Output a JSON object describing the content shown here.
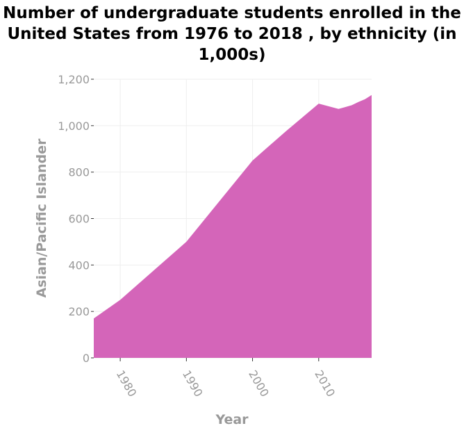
{
  "chart_data": {
    "type": "area",
    "title": "Number of undergraduate students enrolled in the United States from 1976 to 2018 , by ethnicity (in 1,000s)",
    "xlabel": "Year",
    "ylabel": "Asian/Pacific Islander",
    "x": [
      1976,
      1980,
      1990,
      2000,
      2005,
      2010,
      2013,
      2014,
      2015,
      2016,
      2017,
      2018
    ],
    "values": [
      170,
      250,
      500,
      850,
      975,
      1095,
      1072,
      1080,
      1088,
      1102,
      1114,
      1132
    ],
    "xlim": [
      1976,
      2018
    ],
    "ylim": [
      0,
      1200
    ],
    "xticks": [
      "1980",
      "1990",
      "2000",
      "2010"
    ],
    "yticks": [
      "0",
      "200",
      "400",
      "600",
      "800",
      "1,000",
      "1,200"
    ],
    "grid": true,
    "colors": {
      "fill": "#d465b9",
      "grid": "#eeeeee",
      "text": "#999999"
    }
  }
}
